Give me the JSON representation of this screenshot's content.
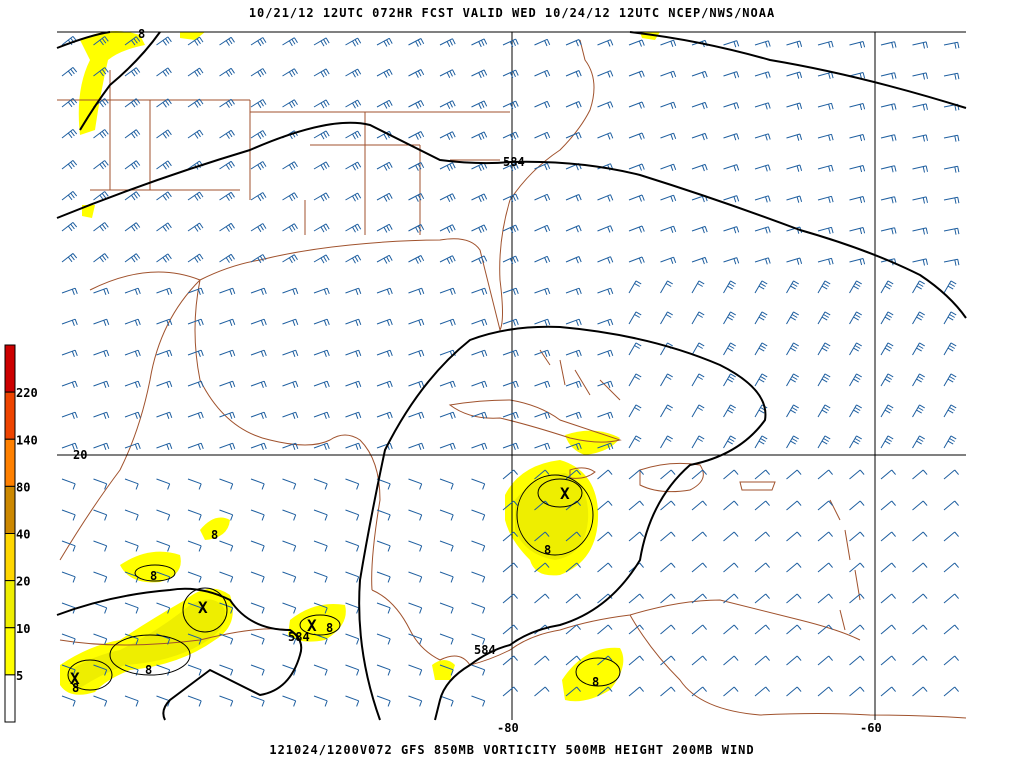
{
  "header": {
    "title": "10/21/12 12UTC   072HR   FCST VALID WED 10/24/12 12UTC   NCEP/NWS/NOAA"
  },
  "footer": {
    "caption": "121024/1200V072 GFS  850MB VORTICITY 500MB HEIGHT 200MB WIND"
  },
  "map": {
    "longitude_labels": [
      "-80",
      "-60"
    ],
    "latitude_labels": [
      "20"
    ],
    "height_contour_labels": [
      "584",
      "584",
      "584"
    ],
    "vorticity_labels": [
      "8",
      "8",
      "8",
      "8",
      "8",
      "8",
      "8",
      "8"
    ],
    "vorticity_max_marker": "X",
    "colors": {
      "coastline": "#a0522d",
      "wind_barb": "#1f5fa0",
      "height_contour": "#000000",
      "grid": "#000000"
    }
  },
  "legend": {
    "levels": [
      "5",
      "10",
      "20",
      "40",
      "80",
      "140",
      "220"
    ],
    "colors": [
      "#ffffff",
      "#ffff00",
      "#eeee00",
      "#ffd700",
      "#cc8800",
      "#ff8000",
      "#ee4400",
      "#cc0000"
    ]
  }
}
